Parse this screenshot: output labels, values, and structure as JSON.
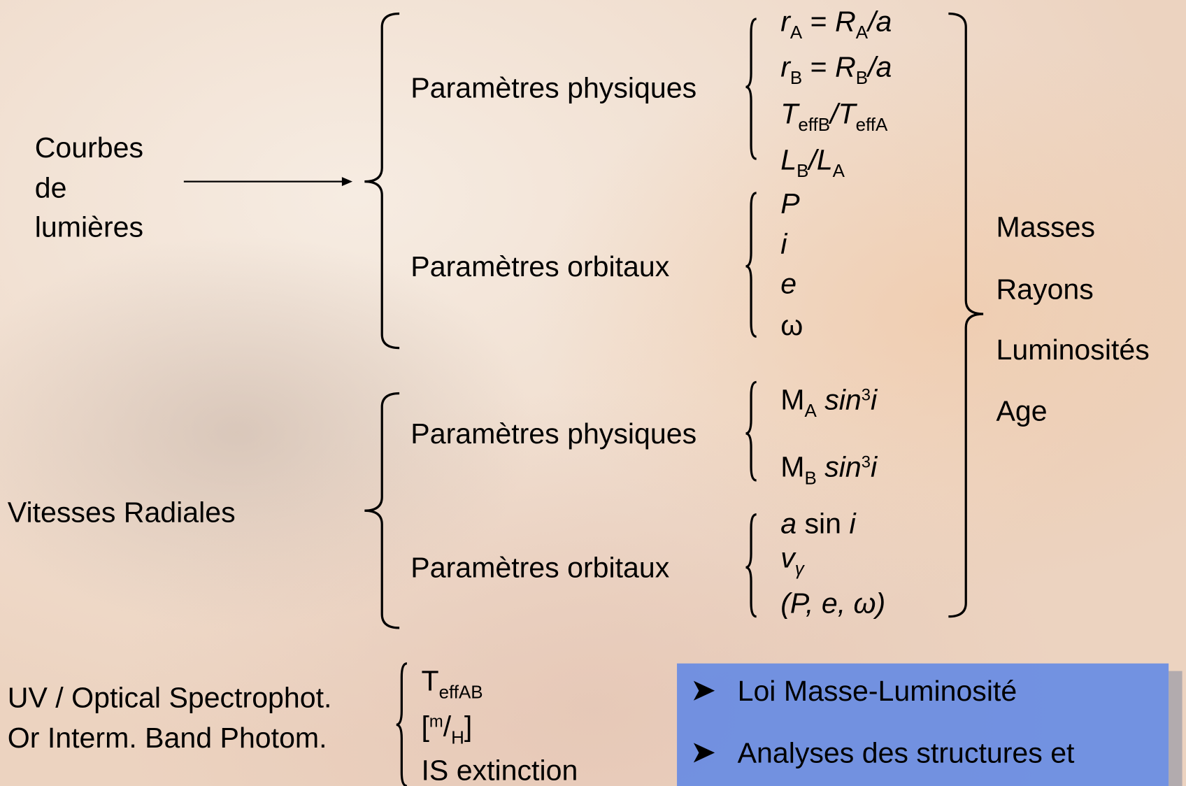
{
  "inputs": {
    "light_curves": [
      "Courbes",
      "de",
      "lumières"
    ],
    "radial_velocities": "Vitesses Radiales",
    "spectrophotometry": [
      "UV / Optical Spectrophot.",
      "Or Interm. Band Photom."
    ]
  },
  "light_curves": {
    "physical": {
      "label": "Paramètres physiques",
      "params": [
        [
          "r",
          "A",
          " = ",
          "R",
          "A",
          "/",
          "a"
        ],
        [
          "r",
          "B",
          " = ",
          "R",
          "B",
          "/",
          "a"
        ],
        [
          "T",
          "effB",
          "/",
          "T",
          "effA"
        ],
        [
          "L",
          "B",
          "/",
          "L",
          "A"
        ]
      ]
    },
    "orbital": {
      "label": "Paramètres orbitaux",
      "params": [
        "P",
        "i",
        "e",
        "ω"
      ]
    }
  },
  "radial_velocities": {
    "physical": {
      "label": "Paramètres physiques",
      "params": [
        [
          "M",
          "A",
          " ",
          "sin",
          "3",
          "i"
        ],
        [
          "M",
          "B",
          " ",
          "sin",
          "3",
          "i"
        ]
      ]
    },
    "orbital": {
      "label": "Paramètres orbitaux",
      "params": [
        [
          "a",
          " sin ",
          "i"
        ],
        [
          "v",
          "γ"
        ],
        "(P, e, ω)"
      ]
    }
  },
  "spectrophotometry_params": [
    [
      "T",
      "effAB"
    ],
    [
      "[",
      "m",
      "/",
      "H",
      "]"
    ],
    "IS extinction"
  ],
  "results": [
    "Masses",
    "Rayons",
    "Luminosités",
    "Age"
  ],
  "box": [
    "Loi Masse-Luminosité",
    "Analyses des structures et"
  ]
}
